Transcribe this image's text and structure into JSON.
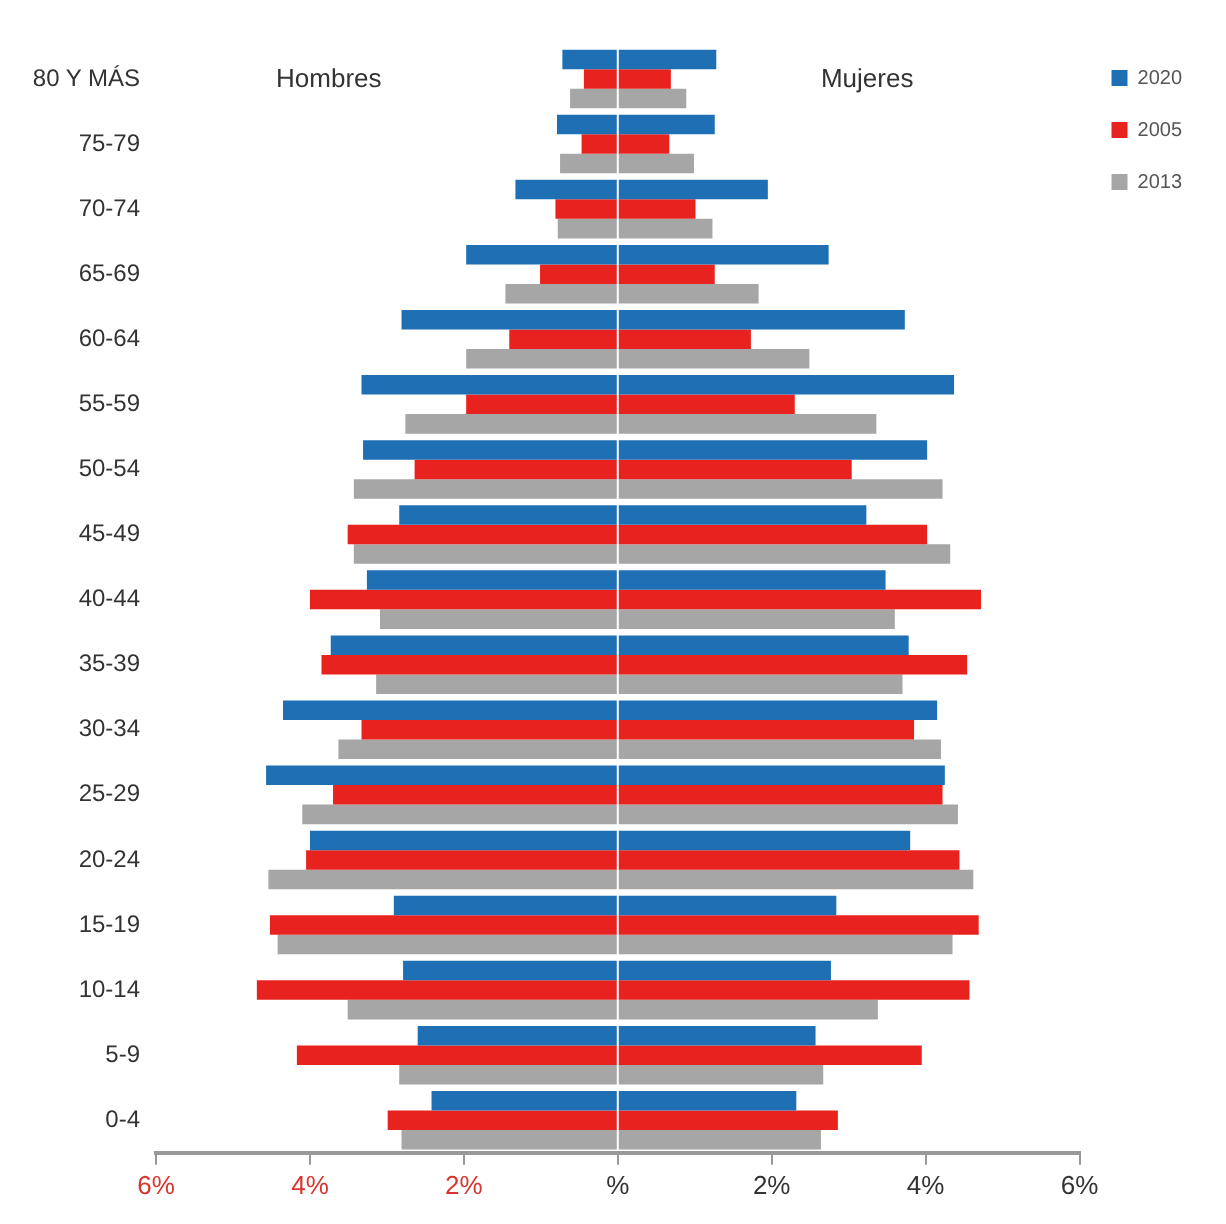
{
  "chart_data": {
    "type": "bar",
    "orientation": "horizontal",
    "categories": [
      "80 Y MÁS",
      "75-79",
      "70-74",
      "65-69",
      "60-64",
      "55-59",
      "50-54",
      "45-49",
      "40-44",
      "35-39",
      "30-34",
      "25-29",
      "20-24",
      "15-19",
      "10-14",
      "5-9",
      "0-4"
    ],
    "series": [
      {
        "name": "2020",
        "color": "#1f6fb4",
        "base": [
          0,
          0,
          0,
          0,
          0,
          0,
          0,
          0,
          0,
          0,
          0,
          0,
          0,
          0,
          0,
          0,
          0
        ],
        "values": [
          -0.72,
          -0.79,
          -1.33,
          -1.97,
          -2.81,
          -3.33,
          -3.31,
          -2.84,
          -3.26,
          -3.73,
          -4.35,
          -4.57,
          -4.0,
          -2.91,
          -2.79,
          -2.6,
          -2.42
        ]
      },
      {
        "color": "#1f6fb4",
        "base": [
          0,
          0,
          0,
          0,
          0,
          0,
          0,
          0,
          0,
          0,
          0,
          0,
          0,
          0,
          0,
          0,
          0
        ],
        "values": [
          1.28,
          1.26,
          1.95,
          2.74,
          3.73,
          4.37,
          4.02,
          3.23,
          3.48,
          3.78,
          4.15,
          4.25,
          3.8,
          2.84,
          2.77,
          2.57,
          2.32
        ]
      },
      {
        "name": "2005",
        "color": "#e8231f",
        "base": [
          0,
          0,
          0,
          0,
          0,
          0,
          0,
          0,
          0,
          0,
          0,
          0,
          0,
          0,
          0,
          0,
          0
        ],
        "values": [
          -0.44,
          -0.47,
          -0.81,
          -1.01,
          -1.41,
          -1.97,
          -2.64,
          -3.51,
          -4.0,
          -3.85,
          -3.33,
          -3.7,
          -4.05,
          -4.52,
          -4.69,
          -4.17,
          -2.99
        ]
      },
      {
        "color": "#e8231f",
        "base": [
          0,
          0,
          0,
          0,
          0,
          0,
          0,
          0,
          0,
          0,
          0,
          0,
          0,
          0,
          0,
          0,
          0
        ],
        "values": [
          0.69,
          0.67,
          1.01,
          1.26,
          1.73,
          2.3,
          3.04,
          4.02,
          4.72,
          4.54,
          3.85,
          4.22,
          4.44,
          4.69,
          4.57,
          3.95,
          2.86
        ]
      },
      {
        "name": "2013",
        "color": "#a6a6a6",
        "base": [
          0,
          0,
          0,
          0,
          0,
          0,
          0,
          0,
          0,
          0,
          0,
          0,
          0,
          0,
          0,
          0,
          0
        ],
        "values": [
          -0.62,
          -0.75,
          -0.78,
          -1.46,
          -1.97,
          -2.76,
          -3.43,
          -3.43,
          -3.09,
          -3.14,
          -3.63,
          -4.1,
          -4.54,
          -4.42,
          -3.51,
          -2.84,
          -2.81
        ]
      },
      {
        "color": "#a6a6a6",
        "base": [
          0,
          0,
          0,
          0,
          0,
          0,
          0,
          0,
          0,
          0,
          0,
          0,
          0,
          0,
          0,
          0,
          0
        ],
        "values": [
          0.89,
          0.99,
          1.23,
          1.83,
          2.49,
          3.36,
          4.22,
          4.32,
          3.6,
          3.7,
          4.2,
          4.42,
          4.62,
          4.35,
          3.38,
          2.67,
          2.64
        ]
      }
    ],
    "xlim": [
      -6,
      6
    ],
    "xticks": [
      {
        "value": -6,
        "label": "6%"
      },
      {
        "value": -4,
        "label": "4%"
      },
      {
        "value": -2,
        "label": "2%"
      },
      {
        "value": 0,
        "label": "%"
      },
      {
        "value": 2,
        "label": "2%"
      },
      {
        "value": 4,
        "label": "4%"
      },
      {
        "value": 6,
        "label": "6%"
      }
    ],
    "annotations": [
      "Hombres",
      "Mujeres"
    ],
    "grid": false,
    "legend": "right"
  }
}
